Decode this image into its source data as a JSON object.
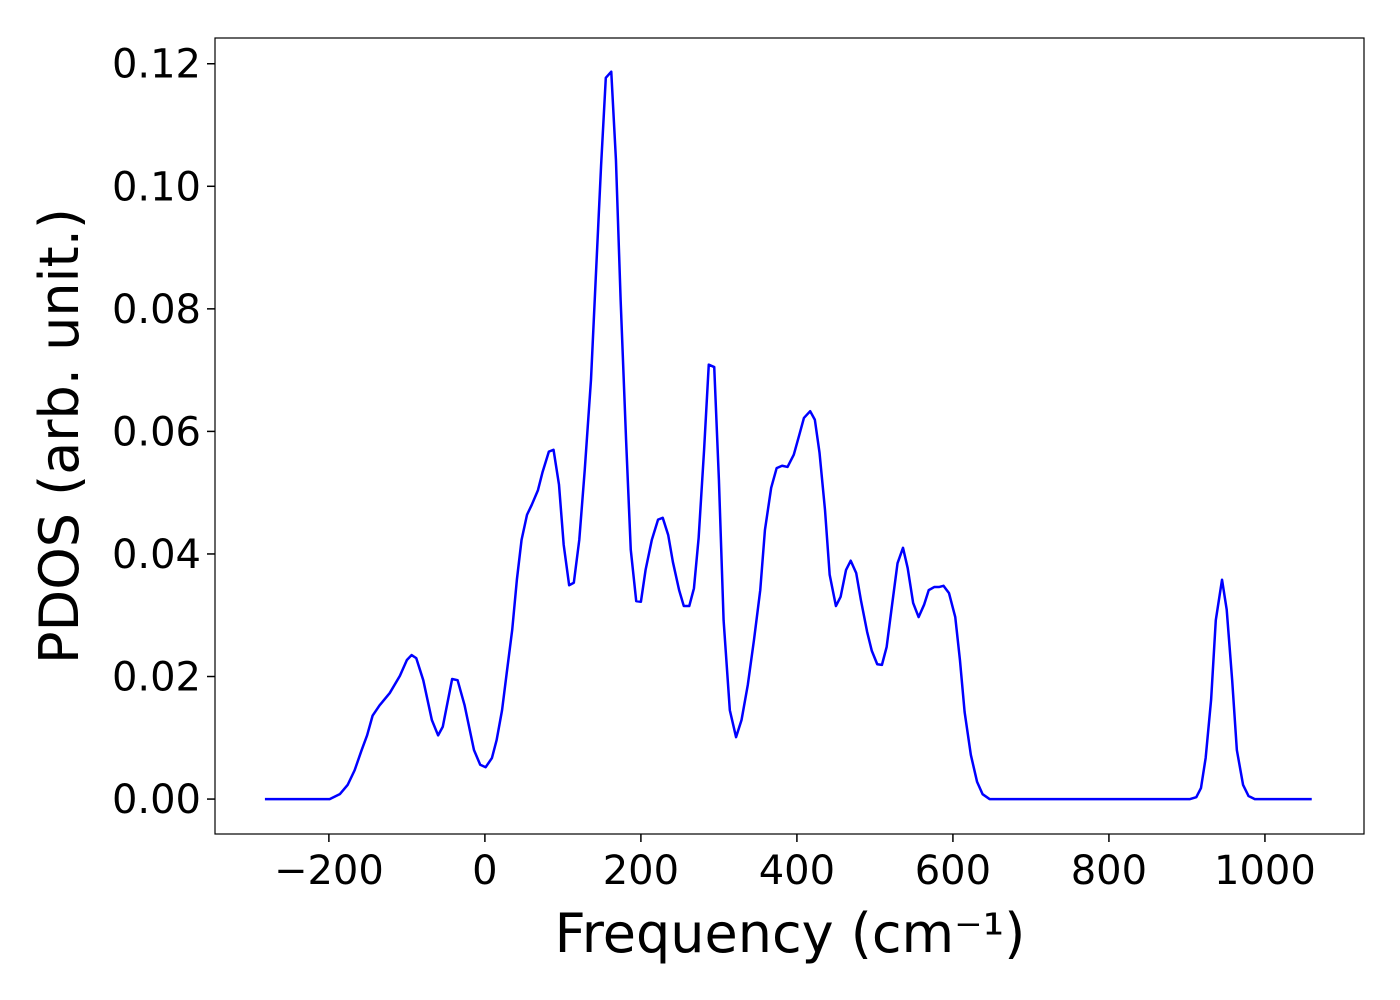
{
  "chart_data": {
    "type": "line",
    "xlabel": "Frequency (cm⁻¹)",
    "ylabel": "PDOS (arb. unit.)",
    "color": "#0000ff",
    "x": [
      -282,
      -199,
      -186,
      -176,
      -167,
      -158,
      -151,
      -144,
      -135,
      -122,
      -109,
      -100,
      -94,
      -88,
      -79,
      -68,
      -60,
      -54,
      -42,
      -35,
      -26,
      -14,
      -6,
      1,
      9,
      15,
      22,
      28,
      35,
      41,
      47,
      54,
      60,
      68,
      74,
      82,
      88,
      95,
      101,
      108,
      114,
      121,
      128,
      136,
      142,
      149,
      155,
      162,
      168,
      174,
      181,
      187,
      194,
      200,
      206,
      214,
      222,
      228,
      235,
      241,
      249,
      255,
      262,
      268,
      274,
      281,
      287,
      294,
      300,
      306,
      314,
      322,
      329,
      337,
      345,
      353,
      359,
      367,
      374,
      381,
      388,
      396,
      403,
      409,
      417,
      423,
      429,
      436,
      442,
      450,
      456,
      463,
      469,
      476,
      482,
      490,
      496,
      503,
      509,
      515,
      522,
      529,
      536,
      542,
      549,
      556,
      563,
      569,
      576,
      582,
      588,
      595,
      603,
      609,
      615,
      623,
      631,
      638,
      647,
      904,
      912,
      918,
      924,
      931,
      937,
      945,
      951,
      958,
      964,
      972,
      979,
      987,
      1060
    ],
    "values": [
      0,
      0,
      0.0008,
      0.0023,
      0.0047,
      0.008,
      0.0104,
      0.0136,
      0.0153,
      0.0173,
      0.0201,
      0.0227,
      0.0235,
      0.023,
      0.0194,
      0.0129,
      0.0104,
      0.0118,
      0.0196,
      0.0194,
      0.0153,
      0.008,
      0.0056,
      0.0052,
      0.0067,
      0.0096,
      0.0145,
      0.0206,
      0.0276,
      0.0358,
      0.0423,
      0.0464,
      0.048,
      0.0504,
      0.0534,
      0.0567,
      0.057,
      0.0513,
      0.0415,
      0.0349,
      0.0353,
      0.0423,
      0.0537,
      0.0684,
      0.0847,
      0.1035,
      0.1177,
      0.1187,
      0.1043,
      0.0815,
      0.0586,
      0.0407,
      0.0323,
      0.0322,
      0.0374,
      0.0423,
      0.0456,
      0.0459,
      0.0431,
      0.0387,
      0.0341,
      0.0315,
      0.0315,
      0.0344,
      0.0426,
      0.057,
      0.0709,
      0.0705,
      0.0521,
      0.0292,
      0.0145,
      0.0101,
      0.0129,
      0.0186,
      0.026,
      0.0341,
      0.0439,
      0.0508,
      0.054,
      0.0544,
      0.0542,
      0.0562,
      0.0594,
      0.0622,
      0.0633,
      0.0619,
      0.0565,
      0.0472,
      0.0366,
      0.0315,
      0.033,
      0.0374,
      0.0389,
      0.0369,
      0.0325,
      0.0273,
      0.0242,
      0.022,
      0.0219,
      0.0248,
      0.0317,
      0.0385,
      0.041,
      0.0377,
      0.032,
      0.0297,
      0.0317,
      0.0341,
      0.0346,
      0.0346,
      0.0348,
      0.0336,
      0.0297,
      0.0227,
      0.0142,
      0.0072,
      0.0028,
      0.0008,
      0,
      0,
      0.0003,
      0.0018,
      0.0067,
      0.0162,
      0.0292,
      0.0358,
      0.0309,
      0.0194,
      0.008,
      0.0023,
      0.0005,
      0,
      0
    ],
    "xlim": [
      -346,
      1127
    ],
    "ylim": [
      -0.0057,
      0.1242
    ],
    "xticks": [
      {
        "value": -200,
        "label": "−200"
      },
      0,
      200,
      400,
      600,
      800,
      1000
    ],
    "yticks": [
      {
        "value": 0,
        "label": "0.00"
      },
      {
        "value": 0.02,
        "label": "0.02"
      },
      {
        "value": 0.04,
        "label": "0.04"
      },
      {
        "value": 0.06,
        "label": "0.06"
      },
      {
        "value": 0.08,
        "label": "0.08"
      },
      {
        "value": 0.1,
        "label": "0.10"
      },
      {
        "value": 0.12,
        "label": "0.12"
      }
    ]
  }
}
